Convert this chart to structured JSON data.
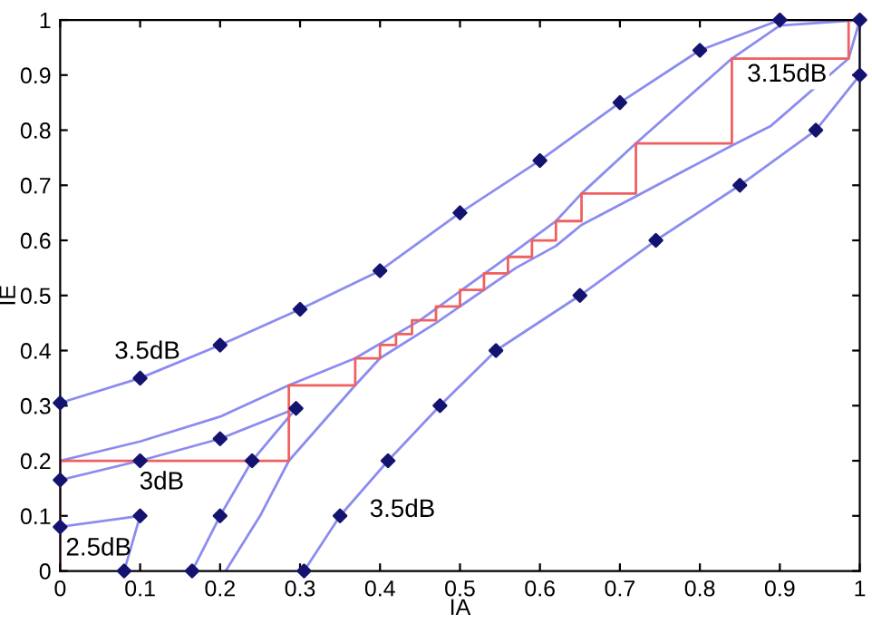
{
  "chart_data": {
    "type": "line",
    "xlabel": "IA",
    "ylabel": "IE",
    "xlim": [
      0,
      1
    ],
    "ylim": [
      0,
      1
    ],
    "xticks": [
      0,
      0.1,
      0.2,
      0.3,
      0.4,
      0.5,
      0.6,
      0.7,
      0.8,
      0.9,
      1
    ],
    "yticks": [
      0,
      0.1,
      0.2,
      0.3,
      0.4,
      0.5,
      0.6,
      0.7,
      0.8,
      0.9,
      1
    ],
    "grid": false,
    "series": [
      {
        "color": "#8c8cf0",
        "marker": "none",
        "x": [
          0,
          0.1,
          0.2,
          0.3,
          0.4,
          0.5,
          0.6,
          0.7,
          0.8,
          0.9,
          1
        ],
        "values": [
          0.305,
          0.35,
          0.41,
          0.475,
          0.545,
          0.65,
          0.745,
          0.85,
          0.945,
          1.0,
          1.0
        ]
      },
      {
        "type": "scatter",
        "color": "#141470",
        "marker": "diamond",
        "x": [
          0,
          0.1,
          0.2,
          0.3,
          0.4,
          0.5,
          0.6,
          0.7,
          0.8,
          0.9,
          1
        ],
        "values": [
          0.305,
          0.35,
          0.41,
          0.475,
          0.545,
          0.65,
          0.745,
          0.85,
          0.945,
          1.0,
          1.0
        ]
      },
      {
        "color": "#8c8cf0",
        "marker": "none",
        "x": [
          0.305,
          0.35,
          0.41,
          0.475,
          0.545,
          0.65,
          0.745,
          0.85,
          0.945,
          1.0,
          1.0
        ],
        "values": [
          0,
          0.1,
          0.2,
          0.3,
          0.4,
          0.5,
          0.6,
          0.7,
          0.8,
          0.9,
          1.0
        ]
      },
      {
        "type": "scatter",
        "color": "#141470",
        "marker": "diamond",
        "x": [
          0.305,
          0.35,
          0.41,
          0.475,
          0.545,
          0.65,
          0.745,
          0.85,
          0.945,
          1.0
        ],
        "values": [
          0,
          0.1,
          0.2,
          0.3,
          0.4,
          0.5,
          0.6,
          0.7,
          0.8,
          0.9
        ]
      },
      {
        "color": "#8c8cf0",
        "marker": "none",
        "x": [
          0,
          0.1,
          0.2,
          0.295
        ],
        "values": [
          0.165,
          0.2,
          0.24,
          0.295
        ]
      },
      {
        "type": "scatter",
        "color": "#141470",
        "marker": "diamond",
        "x": [
          0,
          0.1,
          0.2,
          0.295
        ],
        "values": [
          0.165,
          0.2,
          0.24,
          0.295
        ]
      },
      {
        "color": "#8c8cf0",
        "marker": "none",
        "x": [
          0.165,
          0.2,
          0.24,
          0.295
        ],
        "values": [
          0,
          0.1,
          0.2,
          0.295
        ]
      },
      {
        "type": "scatter",
        "color": "#141470",
        "marker": "diamond",
        "x": [
          0.165,
          0.2,
          0.24
        ],
        "values": [
          0,
          0.1,
          0.2
        ]
      },
      {
        "color": "#8c8cf0",
        "marker": "none",
        "x": [
          0,
          0.1
        ],
        "values": [
          0.08,
          0.1
        ]
      },
      {
        "type": "scatter",
        "color": "#141470",
        "marker": "diamond",
        "x": [
          0,
          0.1
        ],
        "values": [
          0.08,
          0.1
        ]
      },
      {
        "color": "#8c8cf0",
        "marker": "none",
        "x": [
          0.08,
          0.1
        ],
        "values": [
          0,
          0.1
        ]
      },
      {
        "type": "scatter",
        "color": "#141470",
        "marker": "diamond",
        "x": [
          0.08
        ],
        "values": [
          0
        ]
      },
      {
        "color": "#8c8cf0",
        "marker": "none",
        "x": [
          0,
          0.1,
          0.2,
          0.286,
          0.369,
          0.45,
          0.55,
          0.62,
          0.652,
          0.72,
          0.84,
          0.9,
          1
        ],
        "values": [
          0.2,
          0.235,
          0.28,
          0.337,
          0.386,
          0.455,
          0.56,
          0.635,
          0.685,
          0.776,
          0.93,
          0.99,
          1.0
        ]
      },
      {
        "color": "#8c8cf0",
        "marker": "none",
        "x": [
          0.207,
          0.25,
          0.286,
          0.369,
          0.4,
          0.47,
          0.57,
          0.62,
          0.652,
          0.72,
          0.84,
          0.889,
          0.986,
          1
        ],
        "values": [
          0,
          0.1,
          0.2,
          0.337,
          0.386,
          0.45,
          0.55,
          0.59,
          0.628,
          0.68,
          0.772,
          0.808,
          0.93,
          1.0
        ]
      },
      {
        "color": "#f06060",
        "marker": "none",
        "x": [
          0,
          0,
          0.286,
          0.286,
          0.369,
          0.369,
          0.4,
          0.4,
          0.42,
          0.42,
          0.44,
          0.44,
          0.47,
          0.47,
          0.5,
          0.5,
          0.53,
          0.53,
          0.56,
          0.56,
          0.59,
          0.59,
          0.62,
          0.62,
          0.652,
          0.652,
          0.72,
          0.72,
          0.84,
          0.84,
          0.986,
          0.986
        ],
        "values": [
          0,
          0.2,
          0.2,
          0.337,
          0.337,
          0.386,
          0.386,
          0.41,
          0.41,
          0.43,
          0.43,
          0.455,
          0.455,
          0.48,
          0.48,
          0.51,
          0.51,
          0.54,
          0.54,
          0.57,
          0.57,
          0.6,
          0.6,
          0.635,
          0.635,
          0.685,
          0.685,
          0.776,
          0.776,
          0.93,
          0.93,
          1.0
        ]
      }
    ],
    "annotations": [
      "3.5dB",
      "3dB",
      "2.5dB",
      "3.5dB",
      "3.15dB"
    ]
  }
}
